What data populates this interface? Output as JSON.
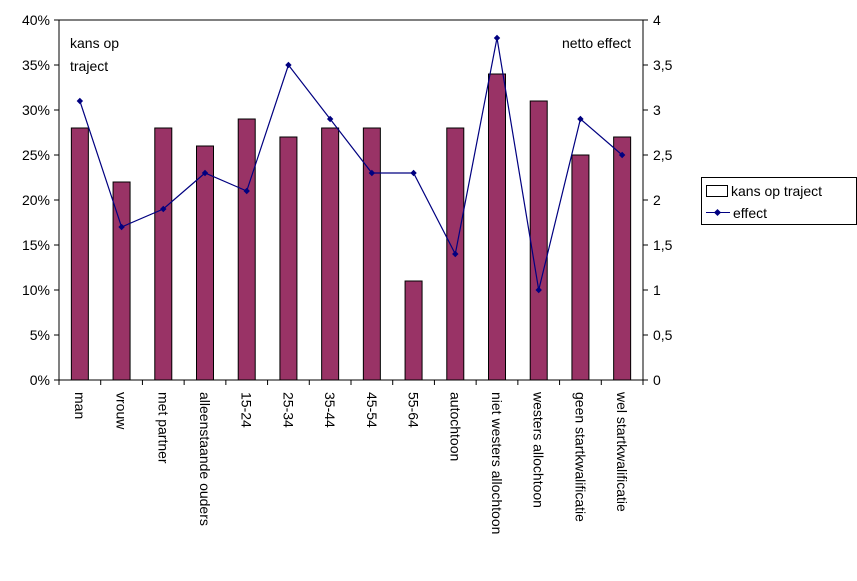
{
  "chart_data": {
    "type": "bar",
    "categories": [
      "man",
      "vrouw",
      "met partner",
      "alleenstaande ouders",
      "15-24",
      "25-34",
      "35-44",
      "45-54",
      "55-64",
      "autochtoon",
      "niet westers allochtoon",
      "westers allochtoon",
      "geen startkwalificatie",
      "wel startkwalificatie"
    ],
    "series": [
      {
        "name": "kans op traject",
        "type": "bar",
        "axis": "left",
        "color": "#993366",
        "values": [
          28,
          22,
          28,
          26,
          29,
          27,
          28,
          28,
          11,
          28,
          34,
          31,
          25,
          27
        ]
      },
      {
        "name": "effect",
        "type": "line",
        "axis": "right",
        "color": "#000080",
        "values": [
          3.1,
          1.7,
          1.9,
          2.3,
          2.1,
          3.5,
          2.9,
          2.3,
          2.3,
          1.4,
          3.8,
          1.0,
          2.9,
          2.5
        ]
      }
    ],
    "left_axis": {
      "ylim": [
        0,
        40
      ],
      "ticks": [
        "0%",
        "5%",
        "10%",
        "15%",
        "20%",
        "25%",
        "30%",
        "35%",
        "40%"
      ]
    },
    "right_axis": {
      "ylim": [
        0,
        4
      ],
      "ticks": [
        "0",
        "0,5",
        "1",
        "1,5",
        "2",
        "2,5",
        "3",
        "3,5",
        "4"
      ]
    },
    "annotations": {
      "left": [
        "kans op",
        "traject"
      ],
      "right": "netto effect"
    },
    "legend": {
      "placement": "right",
      "items": [
        "kans op traject",
        "effect"
      ]
    },
    "grid": false
  }
}
